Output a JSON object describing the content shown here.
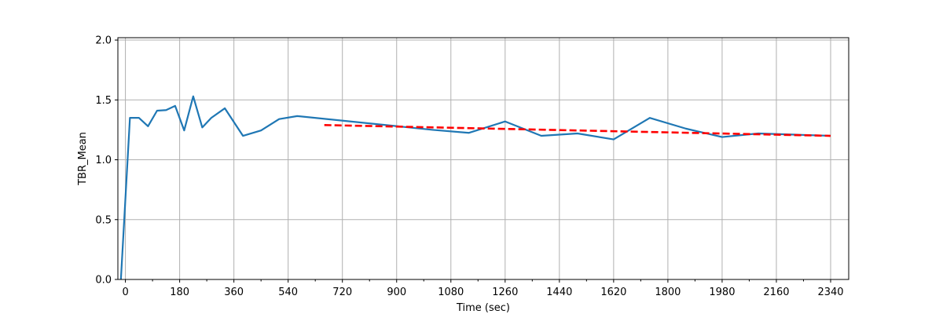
{
  "chart_data": {
    "type": "line",
    "xlabel": "Time (sec)",
    "ylabel": "TBR_Mean",
    "xlim": [
      -25,
      2400
    ],
    "ylim": [
      0.0,
      2.02
    ],
    "xticks": [
      0,
      180,
      360,
      540,
      720,
      900,
      1080,
      1260,
      1440,
      1620,
      1800,
      1980,
      2160,
      2340
    ],
    "xtick_labels": [
      "0",
      "180",
      "360",
      "540",
      "720",
      "900",
      "1080",
      "1260",
      "1440",
      "1620",
      "1800",
      "1980",
      "2160",
      "2340"
    ],
    "xminor_ticks": [
      90,
      270,
      450,
      630,
      810,
      990,
      1170,
      1350,
      1530,
      1710,
      1890,
      2070,
      2250
    ],
    "yticks": [
      0.0,
      0.5,
      1.0,
      1.5,
      2.0
    ],
    "ytick_labels": [
      "0.0",
      "0.5",
      "1.0",
      "1.5",
      "2.0"
    ],
    "grid": true,
    "series": [
      {
        "style": "solid",
        "color": "#1f77b4",
        "x": [
          -15,
          15,
          45,
          75,
          105,
          135,
          165,
          195,
          225,
          255,
          285,
          330,
          390,
          450,
          510,
          570,
          1020,
          1140,
          1260,
          1380,
          1500,
          1620,
          1740,
          1860,
          1980,
          2100,
          2220,
          2340
        ],
        "y": [
          0.0,
          1.35,
          1.35,
          1.28,
          1.41,
          1.415,
          1.45,
          1.245,
          1.53,
          1.27,
          1.35,
          1.43,
          1.2,
          1.245,
          1.34,
          1.365,
          1.25,
          1.225,
          1.32,
          1.2,
          1.22,
          1.17,
          1.35,
          1.26,
          1.19,
          1.22,
          1.21,
          1.2
        ]
      },
      {
        "style": "dashed",
        "color": "#ff0000",
        "x": [
          660,
          2340
        ],
        "y": [
          1.29,
          1.2
        ]
      }
    ]
  }
}
